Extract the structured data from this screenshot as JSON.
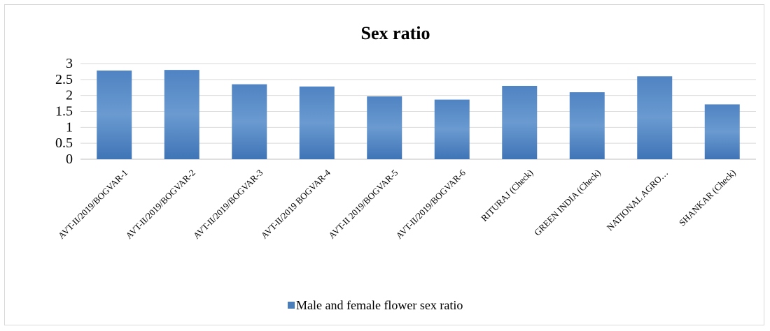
{
  "chart_data": {
    "type": "bar",
    "title": "Sex ratio",
    "xlabel": "",
    "ylabel": "",
    "categories": [
      "AVT-II/2019/BOGVAR-1",
      "AVT-II/2019/BOGVAR-2",
      "AVT-II/2019/BOGVAR-3",
      "AVT-II/2019 BOGVAR-4",
      "AVT-II 2019/BOGVAR-5",
      "AVT-II/2019/BOGVAR-6",
      "RITURAJ (Check)",
      "GREEN INDIA (Check)",
      "NATIONAL AGRO…",
      "SHANKAR (Check)"
    ],
    "series": [
      {
        "name": "Male and female flower sex ratio",
        "values": [
          2.78,
          2.8,
          2.35,
          2.28,
          1.97,
          1.87,
          2.3,
          2.1,
          2.6,
          1.72
        ],
        "color": "#4a7ebb"
      }
    ],
    "yticks": [
      "0",
      "0.5",
      "1",
      "1.5",
      "2",
      "2.5",
      "3"
    ],
    "ylim": [
      0,
      3
    ],
    "grid": true,
    "legend_position": "bottom"
  }
}
